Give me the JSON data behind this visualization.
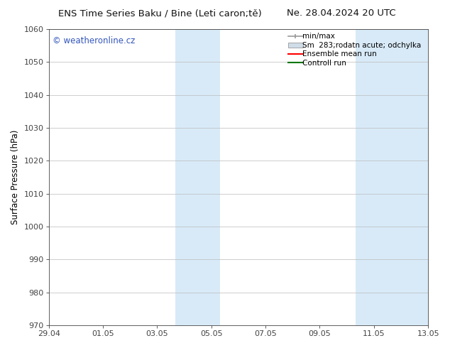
{
  "title_left": "ENS Time Series Baku / Bine (Leti caron;tě)",
  "title_right": "Ne. 28.04.2024 20 UTC",
  "ylabel": "Surface Pressure (hPa)",
  "ylim": [
    970,
    1060
  ],
  "yticks": [
    970,
    980,
    990,
    1000,
    1010,
    1020,
    1030,
    1040,
    1050,
    1060
  ],
  "xticks": [
    "29.04",
    "01.05",
    "03.05",
    "05.05",
    "07.05",
    "09.05",
    "11.05",
    "13.05"
  ],
  "xtick_positions": [
    0,
    2,
    4,
    6,
    8,
    10,
    12,
    14
  ],
  "background_color": "#ffffff",
  "plot_bg_color": "#ffffff",
  "shaded_bands": [
    {
      "x_start": 4.67,
      "x_end": 6.33,
      "color": "#d8eaf8"
    },
    {
      "x_start": 11.33,
      "x_end": 14.0,
      "color": "#d8eaf8"
    }
  ],
  "watermark_text": "© weatheronline.cz",
  "watermark_color": "#3355bb",
  "legend_labels": [
    "min/max",
    "Sm  283;rodatn acute; odchylka",
    "Ensemble mean run",
    "Controll run"
  ],
  "legend_colors": [
    "#999999",
    "#ccddee",
    "#ff0000",
    "#007700"
  ],
  "grid_color": "#bbbbbb",
  "spine_color": "#444444",
  "tick_color": "#444444",
  "font_size_title": 9.5,
  "font_size_axis": 8.5,
  "font_size_ticks": 8,
  "font_size_legend": 7.5,
  "font_size_watermark": 8.5
}
